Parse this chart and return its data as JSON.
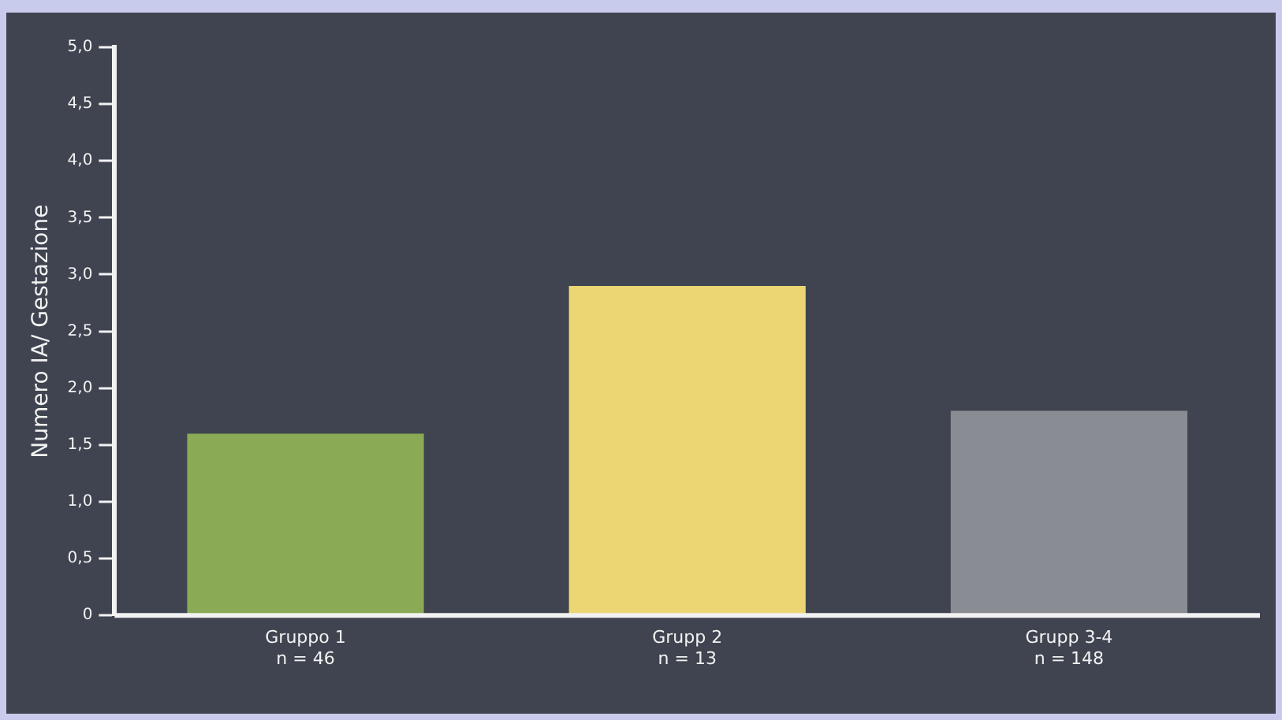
{
  "chart_data": {
    "type": "bar",
    "ylabel": "Numero IA/ Gestazione",
    "categories": [
      "Gruppo 1\nn = 46",
      "Grupp 2\nn = 13",
      "Grupp 3-4\nn = 148"
    ],
    "values": [
      1.6,
      2.9,
      1.8
    ],
    "colors": [
      "#8aaa55",
      "#ecd673",
      "#8a8c94"
    ],
    "ylim": [
      0,
      5
    ],
    "yticks": [
      {
        "value": 0,
        "label": "0"
      },
      {
        "value": 0.5,
        "label": "0,5"
      },
      {
        "value": 1,
        "label": "1,0"
      },
      {
        "value": 1.5,
        "label": "1,5"
      },
      {
        "value": 2,
        "label": "2,0"
      },
      {
        "value": 2.5,
        "label": "2,5"
      },
      {
        "value": 3,
        "label": "3,0"
      },
      {
        "value": 3.5,
        "label": "3,5"
      },
      {
        "value": 4,
        "label": "4,0"
      },
      {
        "value": 4.5,
        "label": "4,5"
      },
      {
        "value": 5,
        "label": "5,0"
      }
    ],
    "grid": false,
    "legend": false
  }
}
